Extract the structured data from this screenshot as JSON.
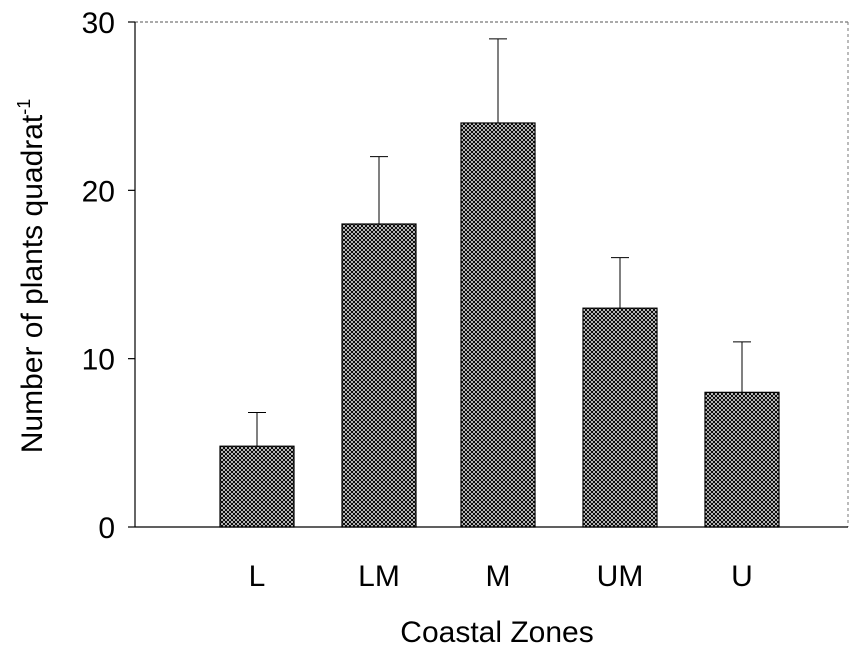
{
  "chart_data": {
    "type": "bar",
    "categories": [
      "L",
      "LM",
      "M",
      "UM",
      "U"
    ],
    "values": [
      4.8,
      18,
      24,
      13,
      8
    ],
    "errors": [
      2.0,
      4.0,
      5.0,
      3.0,
      3.0
    ],
    "title": "",
    "xlabel": "Coastal Zones",
    "ylabel": "Number of plants quadrat",
    "ylabel_superscript": "-1",
    "ylim": [
      0,
      30
    ],
    "yticks": [
      0,
      10,
      20,
      30
    ],
    "grid": false,
    "bar_fill": "crosshatch",
    "colors": {
      "bar_hatch": "#000000",
      "bar_background": "#ffffff",
      "axis": "#000000"
    }
  }
}
